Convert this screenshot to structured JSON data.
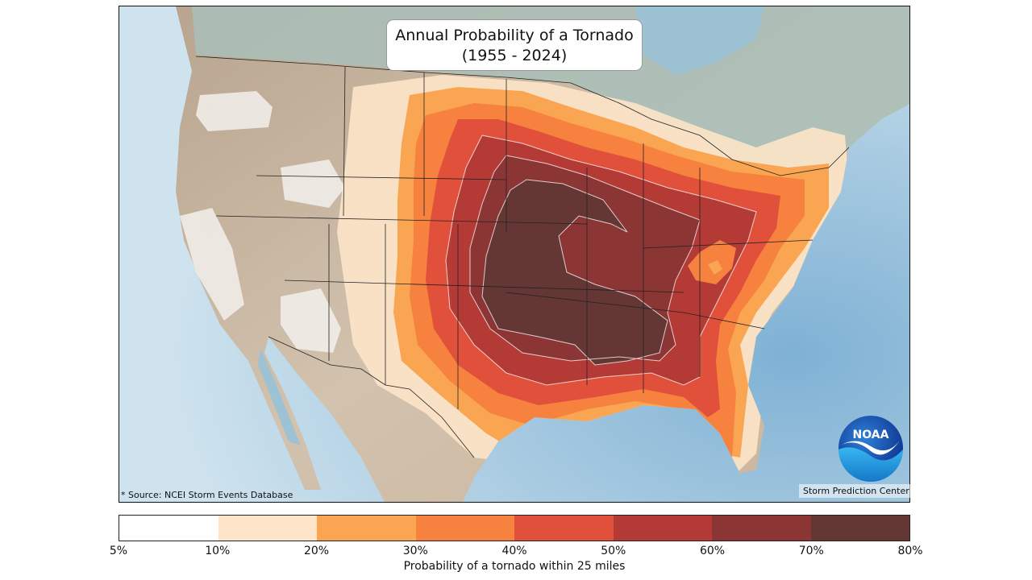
{
  "title": {
    "line1": "Annual Probability of a Tornado",
    "line2": "(1955 - 2024)"
  },
  "source_note": "* Source: NCEI Storm Events Database",
  "credit": "Storm Prediction Center",
  "logo": {
    "text": "NOAA",
    "icon": "noaa-logo"
  },
  "legend": {
    "label": "Probability of a tornado within 25 miles",
    "ticks": [
      "5%",
      "10%",
      "20%",
      "30%",
      "40%",
      "50%",
      "60%",
      "70%",
      "80%"
    ],
    "bins": [
      {
        "range": "5-10",
        "color": "#ffffff"
      },
      {
        "range": "10-20",
        "color": "#fde4c8"
      },
      {
        "range": "20-30",
        "color": "#f9a552"
      },
      {
        "range": "30-40",
        "color": "#f7813f"
      },
      {
        "range": "40-50",
        "color": "#e0503b"
      },
      {
        "range": "50-60",
        "color": "#b43a36"
      },
      {
        "range": "60-70",
        "color": "#8b3535"
      },
      {
        "range": "70-80",
        "color": "#643735"
      }
    ]
  },
  "colors": {
    "ocean": "#a9cde2",
    "land": "#c8b6a2",
    "canada_land": "#a9bfba"
  }
}
